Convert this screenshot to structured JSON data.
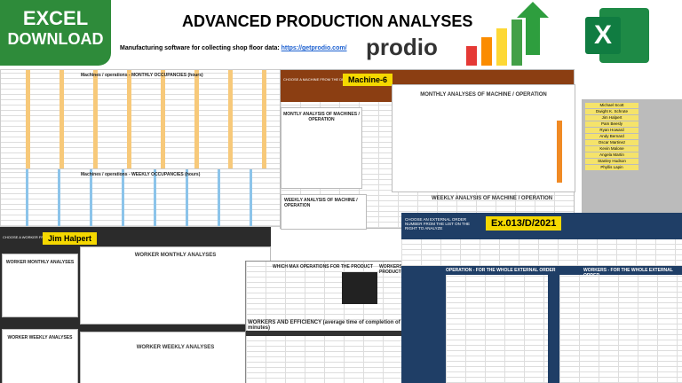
{
  "badge": {
    "line1": "EXCEL",
    "line2": "DOWNLOAD"
  },
  "header": {
    "title": "ADVANCED PRODUCTION ANALYSES",
    "subtitle": "Manufacturing software for collecting shop floor data:",
    "link": "https://getprodio.com/",
    "logo": "prodio"
  },
  "occupancy": {
    "monthly": "Machines / operations - MONTHLY OCCUPANCIES (hours)",
    "weekly": "Machines / operations - WEEKLY OCCUPANCIES (hours)"
  },
  "machine": {
    "prompt": "CHOOSE A MACHINE FROM THE DROP DOWN LIST",
    "selected": "Machine-6",
    "table_title": "MONTLY ANALYSIS OF MACHINES / OPERATION",
    "chart_title": "MONTHLY ANALYSES OF MACHINE / OPERATION",
    "weekly_table": "WEEKLY ANALYSIS OF MACHINE / OPERATION",
    "weekly_chart": "WEEKLY ANALYSIS OF MACHINE / OPERATION"
  },
  "workers_list": [
    "Michael Scott",
    "Dwight K. Schrute",
    "Jim Halpert",
    "Pam Beesly",
    "Ryan Howard",
    "Andy Bernard",
    "Oscar Martinez",
    "Kevin Malone",
    "Angela Martin",
    "Stanley Hudson",
    "Phyllis Lapin"
  ],
  "worker": {
    "prompt": "CHOOSE A WORKER FROM THE DROP DOWN LIST",
    "selected": "Jim Halpert",
    "monthly_table": "WORKER MONTHLY ANALYSES",
    "monthly_chart": "WORKER MONTHLY ANALYSES",
    "weekly_table": "WORKER WEEKLY ANALYSES",
    "weekly_chart": "WORKER WEEKLY ANALYSES"
  },
  "product": {
    "ops": "WHICH MAX OPERATIONS FOR THE PRODUCT",
    "workers": "WORKERS FOR THE PRODUCT",
    "efficiency": "WORKERS AND EFFICIENCY (average time of completion of 1 piece in minutes)"
  },
  "order": {
    "prompt": "CHOOSE AN EXTERNAL ORDER NUMBER FROM THE LIST ON THE RIGHT TO ANALYZE",
    "selected": "Ex.013/D/2021",
    "operation_title": "OPERATION - FOR THE WHOLE EXTERNAL ORDER",
    "workers_title": "WORKERS - FOR THE WHOLE EXTERNAL ORDER"
  }
}
